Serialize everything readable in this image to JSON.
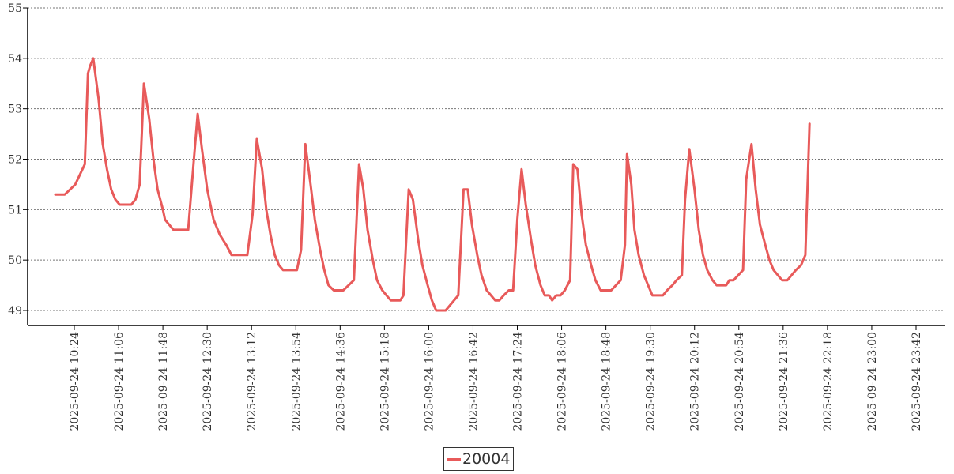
{
  "chart_data": {
    "type": "line",
    "title": "",
    "xlabel": "",
    "ylabel": "",
    "ylim": [
      48.7,
      55
    ],
    "yticks": [
      49,
      50,
      51,
      52,
      53,
      54,
      55
    ],
    "grid": true,
    "legend_position": "bottom-center",
    "tick_labels": [
      "2025-09-24 10:24",
      "2025-09-24 11:06",
      "2025-09-24 11:48",
      "2025-09-24 12:30",
      "2025-09-24 13:12",
      "2025-09-24 13:54",
      "2025-09-24 14:36",
      "2025-09-24 15:18",
      "2025-09-24 16:00",
      "2025-09-24 16:42",
      "2025-09-24 17:24",
      "2025-09-24 18:06",
      "2025-09-24 18:48",
      "2025-09-24 19:30",
      "2025-09-24 20:12",
      "2025-09-24 20:54",
      "2025-09-24 21:36",
      "2025-09-24 22:18",
      "2025-09-24 23:00",
      "2025-09-24 23:42"
    ],
    "series": [
      {
        "name": "20004",
        "color": "#e85a5a",
        "points": [
          [
            "2025-09-24 10:06",
            51.3
          ],
          [
            "2025-09-24 10:15",
            51.3
          ],
          [
            "2025-09-24 10:20",
            51.4
          ],
          [
            "2025-09-24 10:25",
            51.5
          ],
          [
            "2025-09-24 10:34",
            51.9
          ],
          [
            "2025-09-24 10:37",
            53.7
          ],
          [
            "2025-09-24 10:39",
            53.85
          ],
          [
            "2025-09-24 10:42",
            54.0
          ],
          [
            "2025-09-24 10:47",
            53.2
          ],
          [
            "2025-09-24 10:51",
            52.3
          ],
          [
            "2025-09-24 10:55",
            51.8
          ],
          [
            "2025-09-24 10:59",
            51.4
          ],
          [
            "2025-09-24 11:03",
            51.2
          ],
          [
            "2025-09-24 11:07",
            51.1
          ],
          [
            "2025-09-24 11:18",
            51.1
          ],
          [
            "2025-09-24 11:22",
            51.2
          ],
          [
            "2025-09-24 11:26",
            51.5
          ],
          [
            "2025-09-24 11:30",
            53.5
          ],
          [
            "2025-09-24 11:35",
            52.8
          ],
          [
            "2025-09-24 11:39",
            52.0
          ],
          [
            "2025-09-24 11:43",
            51.4
          ],
          [
            "2025-09-24 11:48",
            51.0
          ],
          [
            "2025-09-24 11:50",
            50.8
          ],
          [
            "2025-09-24 11:58",
            50.6
          ],
          [
            "2025-09-24 12:12",
            50.6
          ],
          [
            "2025-09-24 12:17",
            51.9
          ],
          [
            "2025-09-24 12:21",
            52.9
          ],
          [
            "2025-09-24 12:25",
            52.2
          ],
          [
            "2025-09-24 12:30",
            51.4
          ],
          [
            "2025-09-24 12:36",
            50.8
          ],
          [
            "2025-09-24 12:42",
            50.5
          ],
          [
            "2025-09-24 12:48",
            50.3
          ],
          [
            "2025-09-24 12:53",
            50.1
          ],
          [
            "2025-09-24 13:08",
            50.1
          ],
          [
            "2025-09-24 13:13",
            50.9
          ],
          [
            "2025-09-24 13:17",
            52.4
          ],
          [
            "2025-09-24 13:22",
            51.8
          ],
          [
            "2025-09-24 13:26",
            51.0
          ],
          [
            "2025-09-24 13:30",
            50.5
          ],
          [
            "2025-09-24 13:34",
            50.1
          ],
          [
            "2025-09-24 13:38",
            49.9
          ],
          [
            "2025-09-24 13:42",
            49.8
          ],
          [
            "2025-09-24 13:55",
            49.8
          ],
          [
            "2025-09-24 13:59",
            50.2
          ],
          [
            "2025-09-24 14:03",
            52.3
          ],
          [
            "2025-09-24 14:08",
            51.5
          ],
          [
            "2025-09-24 14:12",
            50.8
          ],
          [
            "2025-09-24 14:17",
            50.2
          ],
          [
            "2025-09-24 14:21",
            49.8
          ],
          [
            "2025-09-24 14:25",
            49.5
          ],
          [
            "2025-09-24 14:30",
            49.4
          ],
          [
            "2025-09-24 14:39",
            49.4
          ],
          [
            "2025-09-24 14:49",
            49.6
          ],
          [
            "2025-09-24 14:54",
            51.9
          ],
          [
            "2025-09-24 14:58",
            51.4
          ],
          [
            "2025-09-24 15:02",
            50.6
          ],
          [
            "2025-09-24 15:07",
            50.0
          ],
          [
            "2025-09-24 15:11",
            49.6
          ],
          [
            "2025-09-24 15:16",
            49.4
          ],
          [
            "2025-09-24 15:20",
            49.3
          ],
          [
            "2025-09-24 15:24",
            49.2
          ],
          [
            "2025-09-24 15:33",
            49.2
          ],
          [
            "2025-09-24 15:36",
            49.3
          ],
          [
            "2025-09-24 15:41",
            51.4
          ],
          [
            "2025-09-24 15:45",
            51.2
          ],
          [
            "2025-09-24 15:50",
            50.4
          ],
          [
            "2025-09-24 15:54",
            49.9
          ],
          [
            "2025-09-24 15:59",
            49.5
          ],
          [
            "2025-09-24 16:03",
            49.2
          ],
          [
            "2025-09-24 16:07",
            49.0
          ],
          [
            "2025-09-24 16:16",
            49.0
          ],
          [
            "2025-09-24 16:24",
            49.2
          ],
          [
            "2025-09-24 16:28",
            49.3
          ],
          [
            "2025-09-24 16:33",
            51.4
          ],
          [
            "2025-09-24 16:37",
            51.4
          ],
          [
            "2025-09-24 16:41",
            50.7
          ],
          [
            "2025-09-24 16:46",
            50.1
          ],
          [
            "2025-09-24 16:50",
            49.7
          ],
          [
            "2025-09-24 16:55",
            49.4
          ],
          [
            "2025-09-24 16:59",
            49.3
          ],
          [
            "2025-09-24 17:03",
            49.2
          ],
          [
            "2025-09-24 17:07",
            49.2
          ],
          [
            "2025-09-24 17:11",
            49.3
          ],
          [
            "2025-09-24 17:16",
            49.4
          ],
          [
            "2025-09-24 17:20",
            49.4
          ],
          [
            "2025-09-24 17:24",
            50.8
          ],
          [
            "2025-09-24 17:28",
            51.8
          ],
          [
            "2025-09-24 17:32",
            51.1
          ],
          [
            "2025-09-24 17:37",
            50.4
          ],
          [
            "2025-09-24 17:41",
            49.9
          ],
          [
            "2025-09-24 17:46",
            49.5
          ],
          [
            "2025-09-24 17:50",
            49.3
          ],
          [
            "2025-09-24 17:54",
            49.3
          ],
          [
            "2025-09-24 17:57",
            49.2
          ],
          [
            "2025-09-24 18:01",
            49.3
          ],
          [
            "2025-09-24 18:05",
            49.3
          ],
          [
            "2025-09-24 18:09",
            49.4
          ],
          [
            "2025-09-24 18:14",
            49.6
          ],
          [
            "2025-09-24 18:17",
            51.9
          ],
          [
            "2025-09-24 18:21",
            51.8
          ],
          [
            "2025-09-24 18:25",
            50.9
          ],
          [
            "2025-09-24 18:29",
            50.3
          ],
          [
            "2025-09-24 18:34",
            49.9
          ],
          [
            "2025-09-24 18:38",
            49.6
          ],
          [
            "2025-09-24 18:43",
            49.4
          ],
          [
            "2025-09-24 18:53",
            49.4
          ],
          [
            "2025-09-24 19:02",
            49.6
          ],
          [
            "2025-09-24 19:06",
            50.3
          ],
          [
            "2025-09-24 19:08",
            52.1
          ],
          [
            "2025-09-24 19:12",
            51.5
          ],
          [
            "2025-09-24 19:15",
            50.6
          ],
          [
            "2025-09-24 19:19",
            50.1
          ],
          [
            "2025-09-24 19:24",
            49.7
          ],
          [
            "2025-09-24 19:28",
            49.5
          ],
          [
            "2025-09-24 19:32",
            49.3
          ],
          [
            "2025-09-24 19:42",
            49.3
          ],
          [
            "2025-09-24 19:46",
            49.4
          ],
          [
            "2025-09-24 19:51",
            49.5
          ],
          [
            "2025-09-24 19:55",
            49.6
          ],
          [
            "2025-09-24 20:00",
            49.7
          ],
          [
            "2025-09-24 20:03",
            51.2
          ],
          [
            "2025-09-24 20:07",
            52.2
          ],
          [
            "2025-09-24 20:12",
            51.4
          ],
          [
            "2025-09-24 20:16",
            50.6
          ],
          [
            "2025-09-24 20:20",
            50.1
          ],
          [
            "2025-09-24 20:24",
            49.8
          ],
          [
            "2025-09-24 20:29",
            49.6
          ],
          [
            "2025-09-24 20:33",
            49.5
          ],
          [
            "2025-09-24 20:42",
            49.5
          ],
          [
            "2025-09-24 20:45",
            49.6
          ],
          [
            "2025-09-24 20:49",
            49.6
          ],
          [
            "2025-09-24 20:58",
            49.8
          ],
          [
            "2025-09-24 21:01",
            51.6
          ],
          [
            "2025-09-24 21:06",
            52.3
          ],
          [
            "2025-09-24 21:10",
            51.4
          ],
          [
            "2025-09-24 21:14",
            50.7
          ],
          [
            "2025-09-24 21:19",
            50.3
          ],
          [
            "2025-09-24 21:23",
            50.0
          ],
          [
            "2025-09-24 21:27",
            49.8
          ],
          [
            "2025-09-24 21:35",
            49.6
          ],
          [
            "2025-09-24 21:40",
            49.6
          ],
          [
            "2025-09-24 21:44",
            49.7
          ],
          [
            "2025-09-24 21:48",
            49.8
          ],
          [
            "2025-09-24 21:53",
            49.9
          ],
          [
            "2025-09-24 21:57",
            50.1
          ],
          [
            "2025-09-24 22:01",
            52.7
          ]
        ]
      }
    ]
  },
  "legend": {
    "label": "20004",
    "color": "#e85a5a"
  }
}
